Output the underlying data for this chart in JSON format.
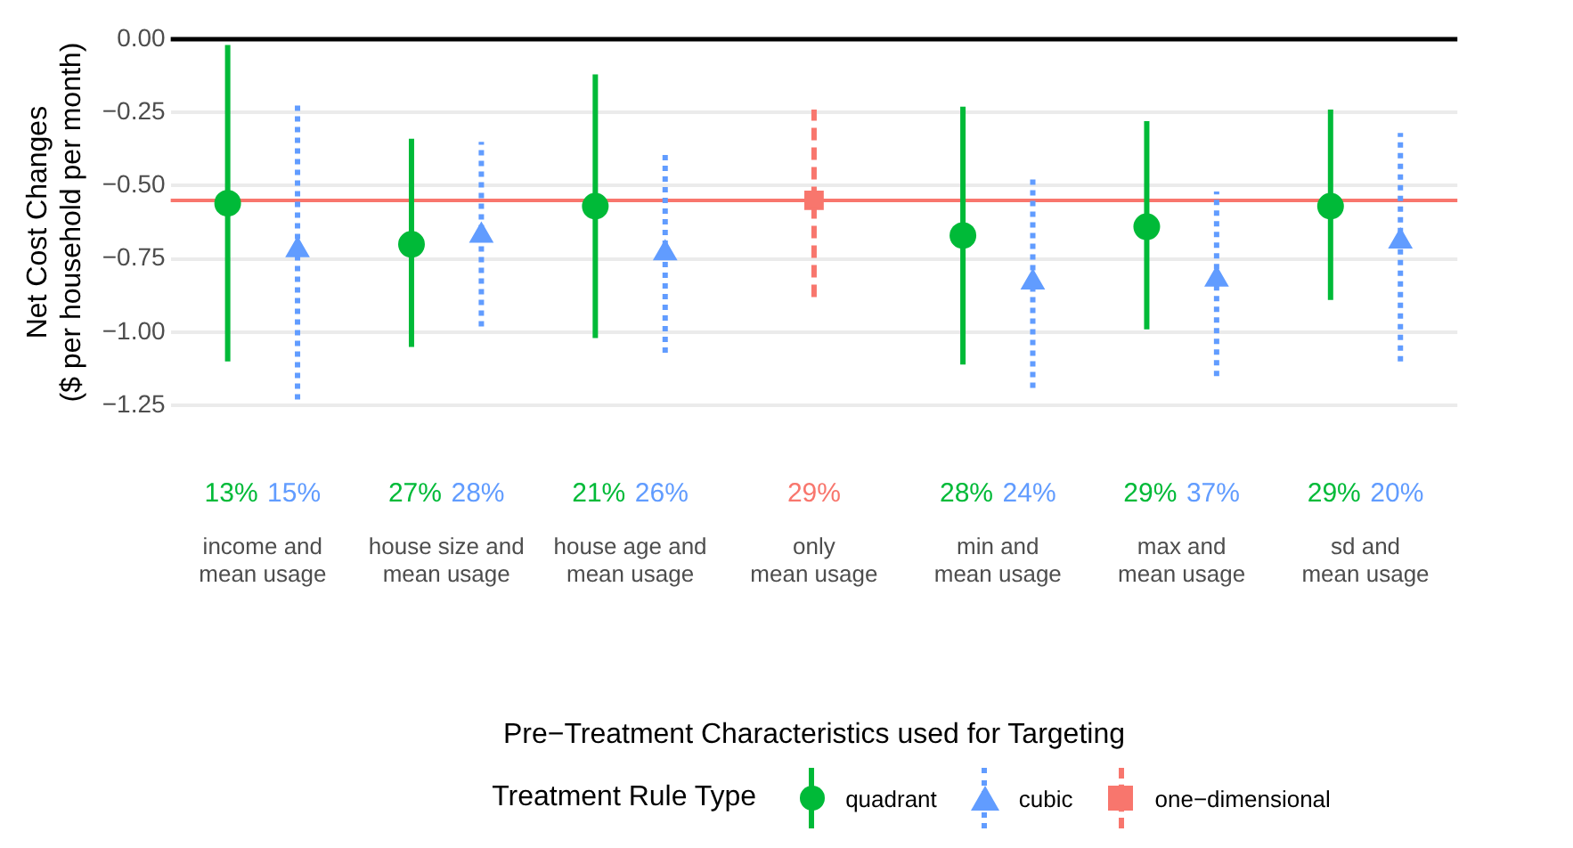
{
  "chart_data": {
    "type": "scatter",
    "xlabel": "Pre−Treatment Characteristics used for Targeting",
    "ylabel": "Net Cost Changes\n($ per household per month)",
    "legend_title": "Treatment Rule Type",
    "legend": "bottom",
    "grid": "y",
    "categories": [
      "income and\nmean usage",
      "house size and\nmean usage",
      "house age and\nmean usage",
      "only\nmean usage",
      "min and\nmean usage",
      "max and\nmean usage",
      "sd and\nmean usage"
    ],
    "ylim": [
      -1.25,
      0
    ],
    "yticks": [
      {
        "value": 0,
        "label": "0.00"
      },
      {
        "value": -0.25,
        "label": "−0.25"
      },
      {
        "value": -0.5,
        "label": "−0.50"
      },
      {
        "value": -0.75,
        "label": "−0.75"
      },
      {
        "value": -1,
        "label": "−1.00"
      },
      {
        "value": -1.25,
        "label": "−1.25"
      }
    ],
    "ref_lines": [
      {
        "axis": "y",
        "value": 0,
        "color": "#000000"
      },
      {
        "axis": "y",
        "value": -0.55,
        "color": "#f8766d"
      }
    ],
    "annotations": [
      "13%",
      "15%",
      "27%",
      "28%",
      "21%",
      "26%",
      "29%",
      "28%",
      "24%",
      "29%",
      "37%",
      "29%",
      "20%"
    ],
    "series": [
      {
        "name": "quadrant",
        "color": "#00ba38",
        "marker": "circle",
        "line_style": "solid",
        "values": [
          -0.56,
          -0.7,
          -0.57,
          null,
          -0.67,
          -0.64,
          -0.57
        ],
        "errors": [
          [
            -1.1,
            -0.02
          ],
          [
            -1.05,
            -0.34
          ],
          [
            -1.02,
            -0.12
          ],
          null,
          [
            -1.11,
            -0.23
          ],
          [
            -0.99,
            -0.28
          ],
          [
            -0.89,
            -0.24
          ]
        ]
      },
      {
        "name": "cubic",
        "color": "#619cff",
        "marker": "triangle",
        "line_style": "dotted",
        "values": [
          -0.72,
          -0.67,
          -0.73,
          null,
          -0.83,
          -0.82,
          -0.69
        ],
        "errors": [
          [
            -1.23,
            -0.21
          ],
          [
            -0.98,
            -0.35
          ],
          [
            -1.07,
            -0.39
          ],
          null,
          [
            -1.19,
            -0.47
          ],
          [
            -1.15,
            -0.52
          ],
          [
            -1.1,
            -0.32
          ]
        ]
      },
      {
        "name": "one−dimensional",
        "color": "#f8766d",
        "marker": "square",
        "line_style": "dashed",
        "values": [
          null,
          null,
          null,
          -0.55,
          null,
          null,
          null
        ],
        "errors": [
          null,
          null,
          null,
          [
            -0.88,
            -0.24
          ],
          null,
          null,
          null
        ]
      }
    ]
  }
}
